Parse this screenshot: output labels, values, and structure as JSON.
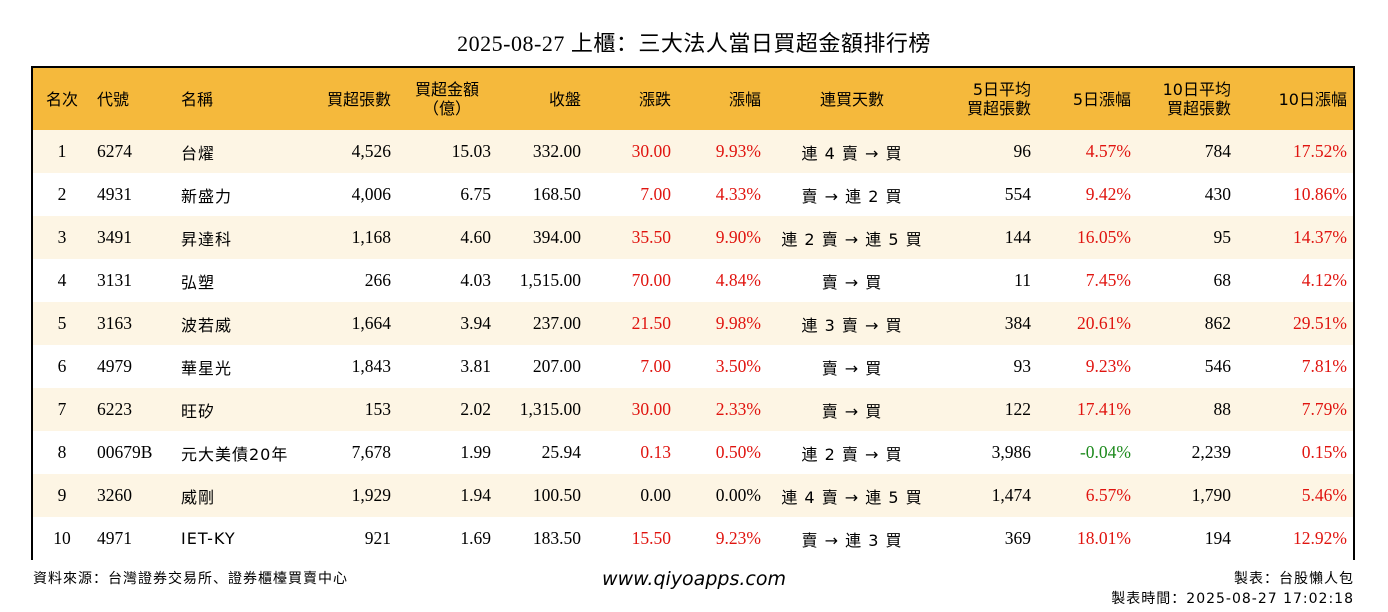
{
  "title": "2025-08-27 上櫃：三大法人當日買超金額排行榜",
  "headers": {
    "rank": "名次",
    "code": "代號",
    "name": "名稱",
    "buy_lots": "買超張數",
    "buy_amount_1": "買超金額",
    "buy_amount_2": "（億）",
    "close": "收盤",
    "change": "漲跌",
    "pct": "漲幅",
    "streak": "連買天數",
    "avg5_1": "5日平均",
    "avg5_2": "買超張數",
    "pct5": "5日漲幅",
    "avg10_1": "10日平均",
    "avg10_2": "買超張數",
    "pct10": "10日漲幅"
  },
  "rows": [
    {
      "rank": "1",
      "code": "6274",
      "name": "台燿",
      "buy_lots": "4,526",
      "buy_amount": "15.03",
      "close": "332.00",
      "change": "30.00",
      "pct": "9.93%",
      "streak": "連 4 賣 → 買",
      "avg5": "96",
      "pct5": "4.57%",
      "avg10": "784",
      "pct10": "17.52%"
    },
    {
      "rank": "2",
      "code": "4931",
      "name": "新盛力",
      "buy_lots": "4,006",
      "buy_amount": "6.75",
      "close": "168.50",
      "change": "7.00",
      "pct": "4.33%",
      "streak": "賣 → 連 2 買",
      "avg5": "554",
      "pct5": "9.42%",
      "avg10": "430",
      "pct10": "10.86%"
    },
    {
      "rank": "3",
      "code": "3491",
      "name": "昇達科",
      "buy_lots": "1,168",
      "buy_amount": "4.60",
      "close": "394.00",
      "change": "35.50",
      "pct": "9.90%",
      "streak": "連 2 賣 → 連 5 買",
      "avg5": "144",
      "pct5": "16.05%",
      "avg10": "95",
      "pct10": "14.37%"
    },
    {
      "rank": "4",
      "code": "3131",
      "name": "弘塑",
      "buy_lots": "266",
      "buy_amount": "4.03",
      "close": "1,515.00",
      "change": "70.00",
      "pct": "4.84%",
      "streak": "賣 → 買",
      "avg5": "11",
      "pct5": "7.45%",
      "avg10": "68",
      "pct10": "4.12%"
    },
    {
      "rank": "5",
      "code": "3163",
      "name": "波若威",
      "buy_lots": "1,664",
      "buy_amount": "3.94",
      "close": "237.00",
      "change": "21.50",
      "pct": "9.98%",
      "streak": "連 3 賣 → 買",
      "avg5": "384",
      "pct5": "20.61%",
      "avg10": "862",
      "pct10": "29.51%"
    },
    {
      "rank": "6",
      "code": "4979",
      "name": "華星光",
      "buy_lots": "1,843",
      "buy_amount": "3.81",
      "close": "207.00",
      "change": "7.00",
      "pct": "3.50%",
      "streak": "賣 → 買",
      "avg5": "93",
      "pct5": "9.23%",
      "avg10": "546",
      "pct10": "7.81%"
    },
    {
      "rank": "7",
      "code": "6223",
      "name": "旺矽",
      "buy_lots": "153",
      "buy_amount": "2.02",
      "close": "1,315.00",
      "change": "30.00",
      "pct": "2.33%",
      "streak": "賣 → 買",
      "avg5": "122",
      "pct5": "17.41%",
      "avg10": "88",
      "pct10": "7.79%"
    },
    {
      "rank": "8",
      "code": "00679B",
      "name": "元大美債20年",
      "buy_lots": "7,678",
      "buy_amount": "1.99",
      "close": "25.94",
      "change": "0.13",
      "pct": "0.50%",
      "streak": "連 2 賣 → 買",
      "avg5": "3,986",
      "pct5": "-0.04%",
      "avg10": "2,239",
      "pct10": "0.15%"
    },
    {
      "rank": "9",
      "code": "3260",
      "name": "威剛",
      "buy_lots": "1,929",
      "buy_amount": "1.94",
      "close": "100.50",
      "change": "0.00",
      "pct": "0.00%",
      "streak": "連 4 賣 → 連 5 買",
      "avg5": "1,474",
      "pct5": "6.57%",
      "avg10": "1,790",
      "pct10": "5.46%"
    },
    {
      "rank": "10",
      "code": "4971",
      "name": "IET-KY",
      "buy_lots": "921",
      "buy_amount": "1.69",
      "close": "183.50",
      "change": "15.50",
      "pct": "9.23%",
      "streak": "賣 → 連 3 買",
      "avg5": "369",
      "pct5": "18.01%",
      "avg10": "194",
      "pct10": "12.92%"
    }
  ],
  "colors": {
    "up": "#e0140f",
    "down": "#1d8a1d",
    "flat": "#000000",
    "header_bg": "#f5b93c",
    "stripe": "#fdf5e4"
  },
  "footer": {
    "source": "資料來源：台灣證券交易所、證券櫃檯買賣中心",
    "website": "www.qiyoapps.com",
    "maker": "製表：台股懶人包",
    "made_time": "製表時間：2025-08-27 17:02:18"
  }
}
